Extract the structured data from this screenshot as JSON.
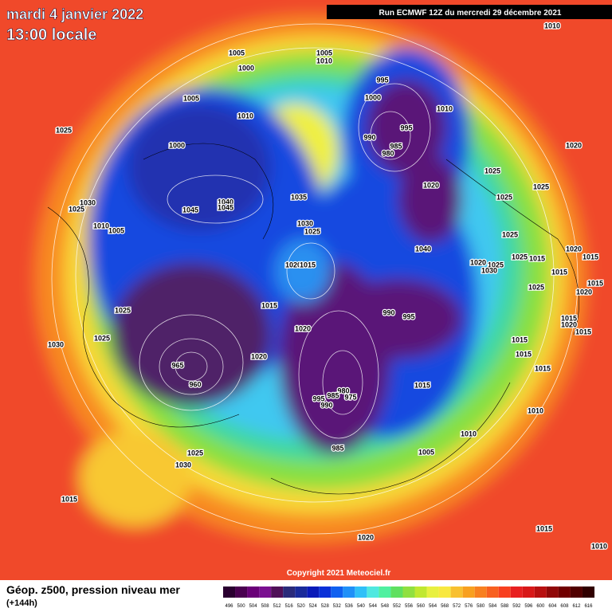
{
  "header": {
    "date": "mardi 4 janvier 2022",
    "time": "13:00 locale",
    "run": "Run ECMWF 12Z du mercredi 29 décembre 2021"
  },
  "copyright": "Copyright 2021 Meteociel.fr",
  "footer": {
    "title": "Géop. z500, pression niveau mer",
    "lead": "(+144h)"
  },
  "colorbar": {
    "ticks": [
      496,
      500,
      504,
      508,
      512,
      516,
      520,
      524,
      528,
      532,
      536,
      540,
      544,
      548,
      552,
      556,
      560,
      564,
      568,
      572,
      576,
      580,
      584,
      588,
      592,
      596,
      600,
      604,
      608,
      612,
      616
    ],
    "colors": [
      "#2a0030",
      "#4a0050",
      "#6a0078",
      "#7a1090",
      "#501058",
      "#2a2a7a",
      "#1a2a9a",
      "#0a1ab8",
      "#0a30d8",
      "#1060f0",
      "#2090f8",
      "#30c0f8",
      "#50e8e0",
      "#50f0a0",
      "#60e060",
      "#90e040",
      "#c0e830",
      "#e8f040",
      "#f8e840",
      "#f8c030",
      "#f8a020",
      "#f88020",
      "#f86020",
      "#f84020",
      "#e82020",
      "#d81818",
      "#b81010",
      "#900808",
      "#700000",
      "#500000",
      "#300000"
    ]
  },
  "pressure_labels": [
    "1005",
    "1005",
    "1010",
    "1000",
    "995",
    "1000",
    "1005",
    "1010",
    "1010",
    "1025",
    "995",
    "990",
    "985",
    "980",
    "1000",
    "1020",
    "1025",
    "1020",
    "1025",
    "1025",
    "1035",
    "1040",
    "1045",
    "1030",
    "1025",
    "1045",
    "1030",
    "1025",
    "1010",
    "1005",
    "1025",
    "1040",
    "1020",
    "1015",
    "1025",
    "1015",
    "1020",
    "1015",
    "1020",
    "1025",
    "1030",
    "1015",
    "1015",
    "1025",
    "1015",
    "1025",
    "1020",
    "990",
    "995",
    "1015",
    "1020",
    "1015",
    "1020",
    "1025",
    "1015",
    "1030",
    "1015",
    "1020",
    "1015",
    "965",
    "960",
    "980",
    "975",
    "995",
    "985",
    "990",
    "1015",
    "1010",
    "1010",
    "985",
    "1005",
    "1025",
    "1030",
    "1015",
    "1020",
    "1015",
    "1010",
    "1010"
  ]
}
